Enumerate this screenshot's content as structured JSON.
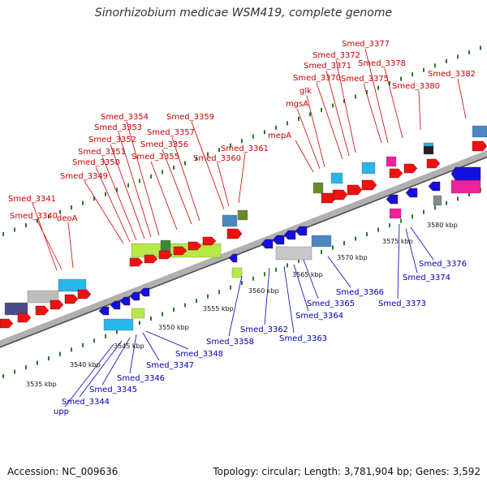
{
  "title": "Sinorhizobium medicae WSM419, complete genome",
  "footer": {
    "accession_label": "Accession: NC_009636",
    "summary_label": "Topology: circular; Length: 3,781,904 bp; Genes: 3,592"
  },
  "colors": {
    "forward_feature": "#ee1111",
    "reverse_feature": "#1111dd",
    "forward_label": "#cc0000",
    "reverse_label": "#0000bb",
    "backbone": "#aaaaaa",
    "tick": "#2a7a2a"
  },
  "scale_labels": [
    "3535 kbp",
    "3540 kbp",
    "3545 kbp",
    "3550 kbp",
    "3555 kbp",
    "3560 kbp",
    "3565 kbp",
    "3570 kbp",
    "3575 kbp",
    "3580 kbp"
  ],
  "forward_genes": [
    "Smed_3341",
    "Smed_3340",
    "deoA",
    "Smed_3349",
    "Smed_3350",
    "Smed_3351",
    "Smed_3352",
    "Smed_3353",
    "Smed_3354",
    "Smed_3355",
    "Smed_3356",
    "Smed_3357",
    "Smed_3359",
    "Smed_3360",
    "Smed_3361",
    "mepA",
    "glk",
    "mgsA",
    "Smed_3370",
    "Smed_3371",
    "Smed_3372",
    "Smed_3377",
    "Smed_3375",
    "Smed_3378",
    "Smed_3380",
    "Smed_3382"
  ],
  "reverse_genes": [
    "upp",
    "Smed_3344",
    "Smed_3345",
    "Smed_3346",
    "Smed_3347",
    "Smed_3348",
    "Smed_3358",
    "Smed_3362",
    "Smed_3363",
    "Smed_3364",
    "Smed_3365",
    "Smed_3366",
    "Smed_3373",
    "Smed_3374",
    "Smed_3376"
  ]
}
